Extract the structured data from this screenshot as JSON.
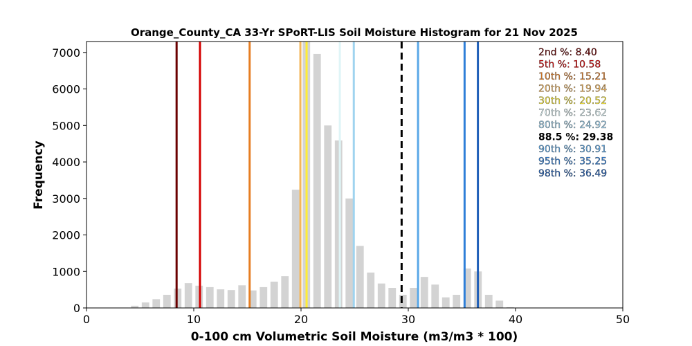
{
  "chart_data": {
    "type": "bar",
    "title": "Orange_County_CA 33-Yr SPoRT-LIS Soil Moisture Histogram for 21 Nov 2025",
    "xlabel": "0-100 cm Volumetric Soil Moisture (m3/m3 * 100)",
    "ylabel": "Frequency",
    "xlim": [
      0,
      50
    ],
    "ylim": [
      0,
      7300
    ],
    "xticks": [
      "0",
      "10",
      "20",
      "30",
      "40",
      "50"
    ],
    "yticks": [
      "0",
      "1000",
      "2000",
      "3000",
      "4000",
      "5000",
      "6000",
      "7000"
    ],
    "bar_color": "#d3d3d3",
    "bar_width": 0.7,
    "bars": [
      {
        "x": 3.5,
        "y": 10
      },
      {
        "x": 4.5,
        "y": 60
      },
      {
        "x": 5.5,
        "y": 150
      },
      {
        "x": 6.5,
        "y": 240
      },
      {
        "x": 7.5,
        "y": 360
      },
      {
        "x": 8.5,
        "y": 530
      },
      {
        "x": 9.5,
        "y": 680
      },
      {
        "x": 10.5,
        "y": 610
      },
      {
        "x": 11.5,
        "y": 570
      },
      {
        "x": 12.5,
        "y": 510
      },
      {
        "x": 13.5,
        "y": 490
      },
      {
        "x": 14.5,
        "y": 620
      },
      {
        "x": 15.5,
        "y": 480
      },
      {
        "x": 16.5,
        "y": 570
      },
      {
        "x": 17.5,
        "y": 720
      },
      {
        "x": 18.5,
        "y": 870
      },
      {
        "x": 19.5,
        "y": 3240
      },
      {
        "x": 20.5,
        "y": 7300
      },
      {
        "x": 21.5,
        "y": 6960
      },
      {
        "x": 22.5,
        "y": 5000
      },
      {
        "x": 23.5,
        "y": 4590
      },
      {
        "x": 24.5,
        "y": 3000
      },
      {
        "x": 25.5,
        "y": 1700
      },
      {
        "x": 26.5,
        "y": 970
      },
      {
        "x": 27.5,
        "y": 670
      },
      {
        "x": 28.5,
        "y": 550
      },
      {
        "x": 29.5,
        "y": 360
      },
      {
        "x": 30.5,
        "y": 550
      },
      {
        "x": 31.5,
        "y": 850
      },
      {
        "x": 32.5,
        "y": 640
      },
      {
        "x": 33.5,
        "y": 290
      },
      {
        "x": 34.5,
        "y": 360
      },
      {
        "x": 35.5,
        "y": 1080
      },
      {
        "x": 36.5,
        "y": 1000
      },
      {
        "x": 37.5,
        "y": 360
      },
      {
        "x": 38.5,
        "y": 200
      },
      {
        "x": 39.5,
        "y": 20
      }
    ],
    "percentile_lines": [
      {
        "label": "2nd %: 8.40",
        "value": 8.4,
        "color": "#6b0000",
        "dashed": false
      },
      {
        "label": "5th %: 10.58",
        "value": 10.58,
        "color": "#d40000",
        "dashed": false
      },
      {
        "label": "10th %: 15.21",
        "value": 15.21,
        "color": "#e67e22",
        "dashed": false
      },
      {
        "label": "20th %: 19.94",
        "value": 19.94,
        "color": "#f4b65a",
        "dashed": false
      },
      {
        "label": "30th %: 20.52",
        "value": 20.52,
        "color": "#ffee33",
        "dashed": false
      },
      {
        "label": "70th %: 23.62",
        "value": 23.62,
        "color": "#dff5f7",
        "dashed": false
      },
      {
        "label": "80th %: 24.92",
        "value": 24.92,
        "color": "#9fd3ef",
        "dashed": false
      },
      {
        "label": "88.5 %: 29.38",
        "value": 29.38,
        "color": "#000000",
        "dashed": true
      },
      {
        "label": "90th %: 30.91",
        "value": 30.91,
        "color": "#5aa8e8",
        "dashed": false
      },
      {
        "label": "95th %: 35.25",
        "value": 35.25,
        "color": "#2f7fd8",
        "dashed": false
      },
      {
        "label": "98th %: 36.49",
        "value": 36.49,
        "color": "#1f5fb8",
        "dashed": false
      }
    ],
    "legend_placement": "top-right",
    "grid": false
  }
}
